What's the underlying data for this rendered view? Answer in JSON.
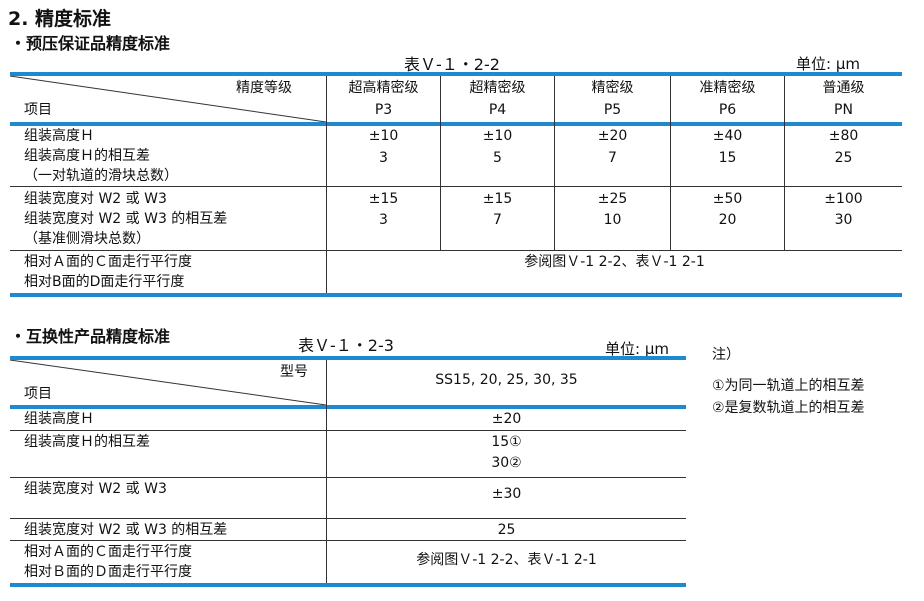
{
  "section_title": "2. 精度标准",
  "t1": {
    "subtitle": "・预压保证品精度标准",
    "caption": "表Ｖ-１・2-2",
    "unit": "单位: μm",
    "hdr_top": "精度等级",
    "hdr_bottom": "项目",
    "grades": [
      {
        "name": "超高精密级",
        "code": "P3"
      },
      {
        "name": "超精密级",
        "code": "P4"
      },
      {
        "name": "精密级",
        "code": "P5"
      },
      {
        "name": "准精密级",
        "code": "P6"
      },
      {
        "name": "普通级",
        "code": "PN"
      }
    ],
    "g1_items": [
      "组装高度Ｈ",
      "组装高度Ｈ的相互差",
      "（一对轨道的滑块总数）"
    ],
    "g1_vals": [
      [
        "±10",
        "±10",
        "±20",
        "±40",
        "±80"
      ],
      [
        "3",
        "5",
        "7",
        "15",
        "25"
      ]
    ],
    "g2_items": [
      "组装宽度对 W2 或 W3",
      "组装宽度对 W2 或 W3 的相互差",
      "（基准侧滑块总数）"
    ],
    "g2_vals": [
      [
        "±15",
        "±15",
        "±25",
        "±50",
        "±100"
      ],
      [
        "3",
        "7",
        "10",
        "20",
        "30"
      ]
    ],
    "g3_items": [
      "相对Ａ面的Ｃ面走行平行度",
      "相对B面的D面走行平行度"
    ],
    "g3_ref": "参阅图Ｖ-1 2-2、表Ｖ-1 2-1"
  },
  "t2": {
    "subtitle": "・互换性产品精度标准",
    "caption": "表Ｖ-１・2-3",
    "unit": "单位: μm",
    "hdr_top": "型号",
    "hdr_bottom": "项目",
    "models": "SS15, 20, 25, 30, 35",
    "r1_item": "组装高度Ｈ",
    "r1_val": "±20",
    "r2_item": "组装高度Ｈ的相互差",
    "r2_val1": "15①",
    "r2_val2": "30②",
    "r3_item": "组装宽度对 W2 或 W3",
    "r3_val": "±30",
    "r4_item": "组装宽度对 W2 或 W3 的相互差",
    "r4_val": "25",
    "r5_items": [
      "相对Ａ面的Ｃ面走行平行度",
      "相对Ｂ面的Ｄ面走行平行度"
    ],
    "r5_val": "参阅图Ｖ-1 2-2、表Ｖ-1 2-1"
  },
  "notes": {
    "title": "注）",
    "items": [
      "①为同一轨道上的相互差",
      "②是复数轨道上的相互差"
    ]
  },
  "colors": {
    "rule": "#1e88d0",
    "line": "#333333"
  }
}
